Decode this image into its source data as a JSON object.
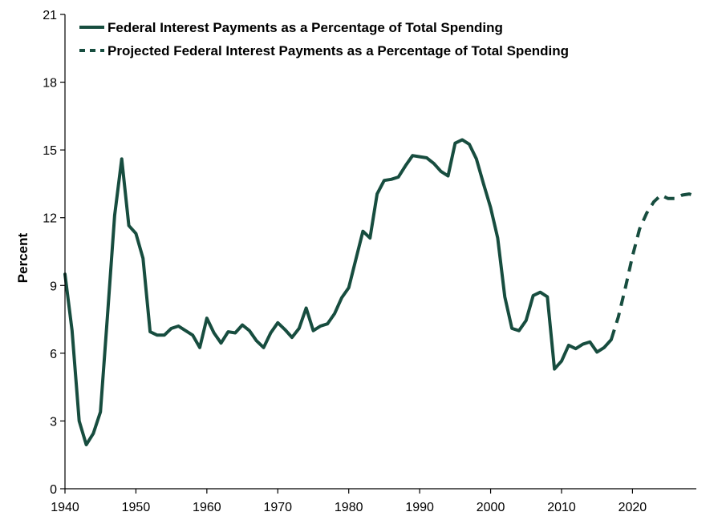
{
  "chart_data": {
    "type": "line",
    "title": "",
    "xlabel": "",
    "ylabel": "Percent",
    "xlim": [
      1940,
      2029
    ],
    "ylim": [
      0,
      21
    ],
    "xticks": [
      1940,
      1950,
      1960,
      1970,
      1980,
      1990,
      2000,
      2010,
      2020
    ],
    "yticks": [
      0,
      3,
      6,
      9,
      12,
      15,
      18,
      21
    ],
    "grid": false,
    "legend_position": "top-left",
    "series": [
      {
        "name": "Federal Interest Payments as a Percentage of Total Spending",
        "style": "solid",
        "color": "#174d3f",
        "x": [
          1940,
          1941,
          1942,
          1943,
          1944,
          1945,
          1946,
          1947,
          1948,
          1949,
          1950,
          1951,
          1952,
          1953,
          1954,
          1955,
          1956,
          1957,
          1958,
          1959,
          1960,
          1961,
          1962,
          1963,
          1964,
          1965,
          1966,
          1967,
          1968,
          1969,
          1970,
          1971,
          1972,
          1973,
          1974,
          1975,
          1976,
          1977,
          1978,
          1979,
          1980,
          1981,
          1982,
          1983,
          1984,
          1985,
          1986,
          1987,
          1988,
          1989,
          1990,
          1991,
          1992,
          1993,
          1994,
          1995,
          1996,
          1997,
          1998,
          1999,
          2000,
          2001,
          2002,
          2003,
          2004,
          2005,
          2006,
          2007,
          2008,
          2009,
          2010,
          2011,
          2012,
          2013,
          2014,
          2015,
          2016,
          2017
        ],
        "y": [
          9.5,
          7.0,
          3.0,
          1.95,
          2.45,
          3.4,
          7.7,
          12.1,
          14.6,
          11.65,
          11.3,
          10.2,
          6.95,
          6.8,
          6.8,
          7.1,
          7.2,
          7.0,
          6.8,
          6.25,
          7.55,
          6.9,
          6.45,
          6.95,
          6.9,
          7.25,
          7.0,
          6.55,
          6.25,
          6.9,
          7.35,
          7.05,
          6.7,
          7.1,
          8.0,
          7.0,
          7.2,
          7.3,
          7.75,
          8.45,
          8.9,
          10.15,
          11.4,
          11.1,
          13.05,
          13.65,
          13.7,
          13.8,
          14.3,
          14.75,
          14.7,
          14.65,
          14.4,
          14.05,
          13.85,
          15.3,
          15.45,
          15.25,
          14.6,
          13.5,
          12.45,
          11.1,
          8.5,
          7.1,
          7.0,
          7.45,
          8.55,
          8.7,
          8.5,
          5.3,
          5.65,
          6.35,
          6.2,
          6.4,
          6.5,
          6.05,
          6.25,
          6.6
        ]
      },
      {
        "name": "Projected Federal Interest Payments as a Percentage of Total Spending",
        "style": "dashed",
        "color": "#174d3f",
        "x": [
          2017,
          2018,
          2019,
          2020,
          2021,
          2022,
          2023,
          2024,
          2025,
          2026,
          2027,
          2028,
          2029
        ],
        "y": [
          6.6,
          7.6,
          8.9,
          10.3,
          11.5,
          12.2,
          12.7,
          13.0,
          12.85,
          12.85,
          13.0,
          13.05,
          12.95
        ]
      }
    ]
  }
}
